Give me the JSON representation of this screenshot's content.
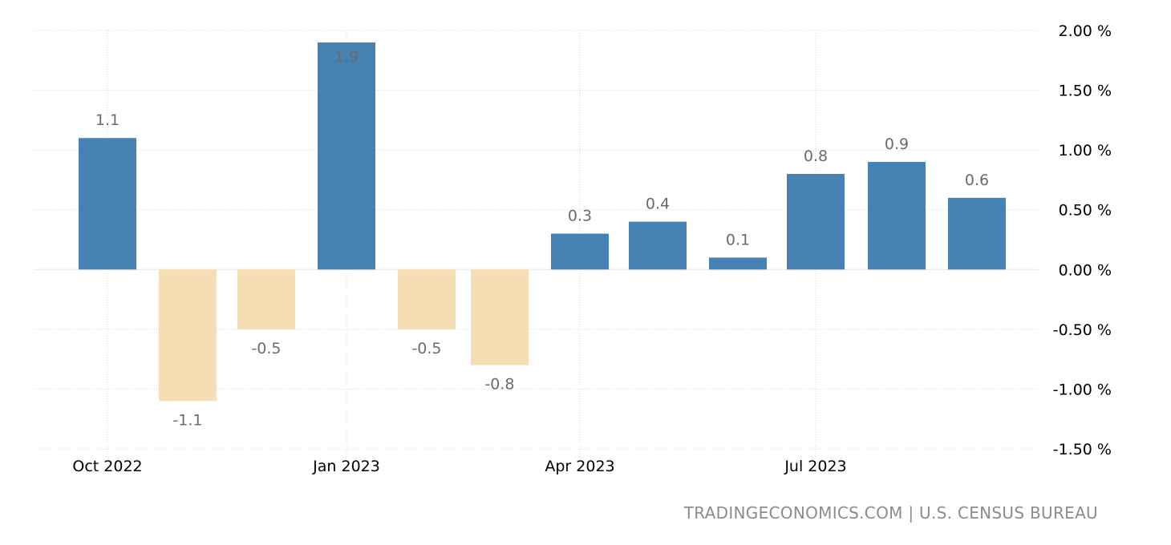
{
  "chart_data": {
    "type": "bar",
    "categories": [
      "Oct 2022",
      "Nov 2022",
      "Dec 2022",
      "Jan 2023",
      "Feb 2023",
      "Mar 2023",
      "Apr 2023",
      "May 2023",
      "Jun 2023",
      "Jul 2023",
      "Aug 2023",
      "Sep 2023"
    ],
    "values": [
      1.1,
      -1.1,
      -0.5,
      1.9,
      -0.5,
      -0.8,
      0.3,
      0.4,
      0.1,
      0.8,
      0.9,
      0.6
    ],
    "data_labels": [
      "1.1",
      "-1.1",
      "-0.5",
      "1.9",
      "-0.5",
      "-0.8",
      "0.3",
      "0.4",
      "0.1",
      "0.8",
      "0.9",
      "0.6"
    ],
    "x_tick_labels": [
      {
        "label": "Oct 2022",
        "category": "Oct 2022"
      },
      {
        "label": "Jan 2023",
        "category": "Jan 2023"
      },
      {
        "label": "Apr 2023",
        "category": "Apr 2023"
      },
      {
        "label": "Jul 2023",
        "category": "Jul 2023"
      }
    ],
    "y_ticks": [
      2.0,
      1.5,
      1.0,
      0.5,
      0.0,
      -0.5,
      -1.0,
      -1.5
    ],
    "y_tick_labels": [
      "2.00 %",
      "1.50 %",
      "1.00 %",
      "0.50 %",
      "0.00 %",
      "-0.50 %",
      "-1.00 %",
      "-1.50 %"
    ],
    "ylim": [
      -1.5,
      2.0
    ],
    "y_axis_side": "right",
    "grid": true,
    "colors": {
      "positive": "#4682b4",
      "negative": "#f5deb3"
    },
    "title": "",
    "xlabel": "",
    "ylabel": ""
  },
  "source": "TRADINGECONOMICS.COM | U.S. CENSUS BUREAU"
}
